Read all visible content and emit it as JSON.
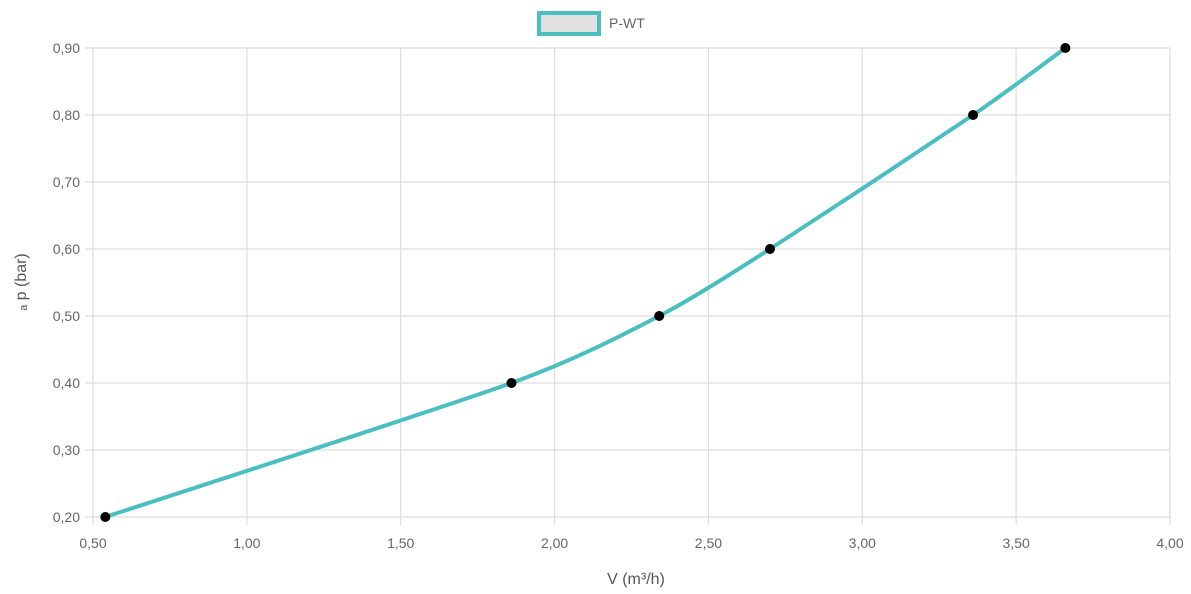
{
  "chart_data": {
    "type": "line",
    "title": "",
    "xlabel": "V (m³/h)",
    "ylabel": "ₐ p (bar)",
    "xlim": [
      0.5,
      4.0
    ],
    "ylim": [
      0.2,
      0.9
    ],
    "x_ticks": [
      "0,50",
      "1,00",
      "1,50",
      "2,00",
      "2,50",
      "3,00",
      "3,50",
      "4,00"
    ],
    "y_ticks": [
      "0,20",
      "0,30",
      "0,40",
      "0,50",
      "0,60",
      "0,70",
      "0,80",
      "0,90"
    ],
    "grid": true,
    "legend_position": "top-center",
    "series": [
      {
        "name": "P-WT",
        "color": "#4bbfbf",
        "legend_fill": "#e0e0e0",
        "point_color": "#000000",
        "points": [
          {
            "x": 0.54,
            "y": 0.2
          },
          {
            "x": 1.86,
            "y": 0.4
          },
          {
            "x": 2.34,
            "y": 0.5
          },
          {
            "x": 2.7,
            "y": 0.6
          },
          {
            "x": 3.36,
            "y": 0.8
          },
          {
            "x": 3.66,
            "y": 0.9
          }
        ]
      }
    ]
  }
}
